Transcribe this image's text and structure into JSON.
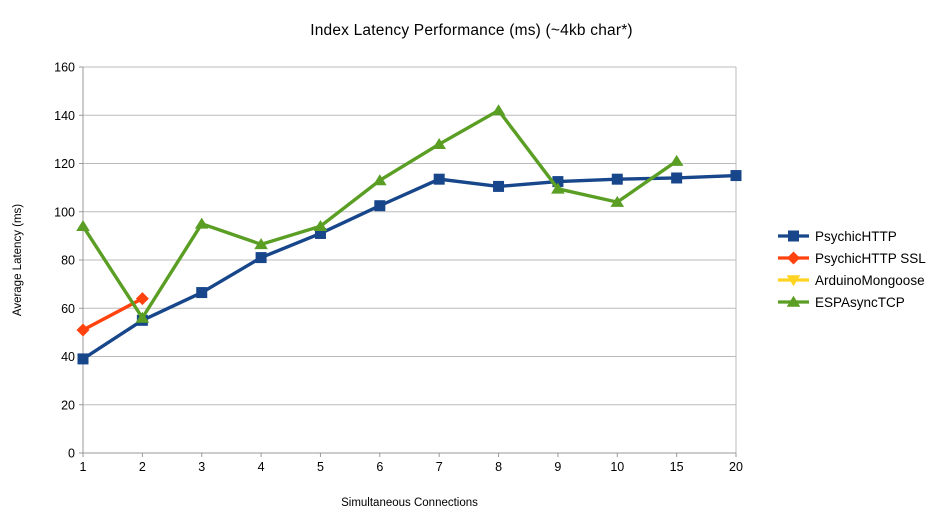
{
  "chart_data": {
    "type": "line",
    "title": "Index Latency Performance (ms) (~4kb char*)",
    "xlabel": "Simultaneous Connections",
    "ylabel": "Average Latency (ms)",
    "categories": [
      "1",
      "2",
      "3",
      "4",
      "5",
      "6",
      "7",
      "8",
      "9",
      "10",
      "15",
      "20"
    ],
    "y_ticks": [
      0,
      20,
      40,
      60,
      80,
      100,
      120,
      140,
      160
    ],
    "ylim": [
      0,
      160
    ],
    "grid": "horizontal",
    "legend_position": "right",
    "series": [
      {
        "name": "PsychicHTTP",
        "color": "#17468b",
        "marker": "square",
        "values": [
          39,
          55,
          66.5,
          81,
          91,
          102.5,
          113.5,
          110.5,
          112.5,
          113.5,
          114,
          115
        ]
      },
      {
        "name": "PsychicHTTP SSL",
        "color": "#ff420e",
        "marker": "diamond",
        "values": [
          51,
          64,
          null,
          null,
          null,
          null,
          null,
          null,
          null,
          null,
          null,
          null
        ]
      },
      {
        "name": "ArduinoMongoose",
        "color": "#ffd320",
        "marker": "triangle-down",
        "values": [
          null,
          null,
          null,
          null,
          null,
          null,
          null,
          null,
          null,
          null,
          null,
          null
        ]
      },
      {
        "name": "ESPAsyncTCP",
        "color": "#5a9e24",
        "marker": "triangle-up",
        "values": [
          94,
          56,
          95,
          86.5,
          94,
          113,
          128,
          142,
          109.5,
          104,
          121,
          null
        ]
      }
    ],
    "style": {
      "grid_color": "#bbbbbb",
      "axis_color": "#999999",
      "tick_label_color": "#000000",
      "background": "#ffffff"
    }
  }
}
